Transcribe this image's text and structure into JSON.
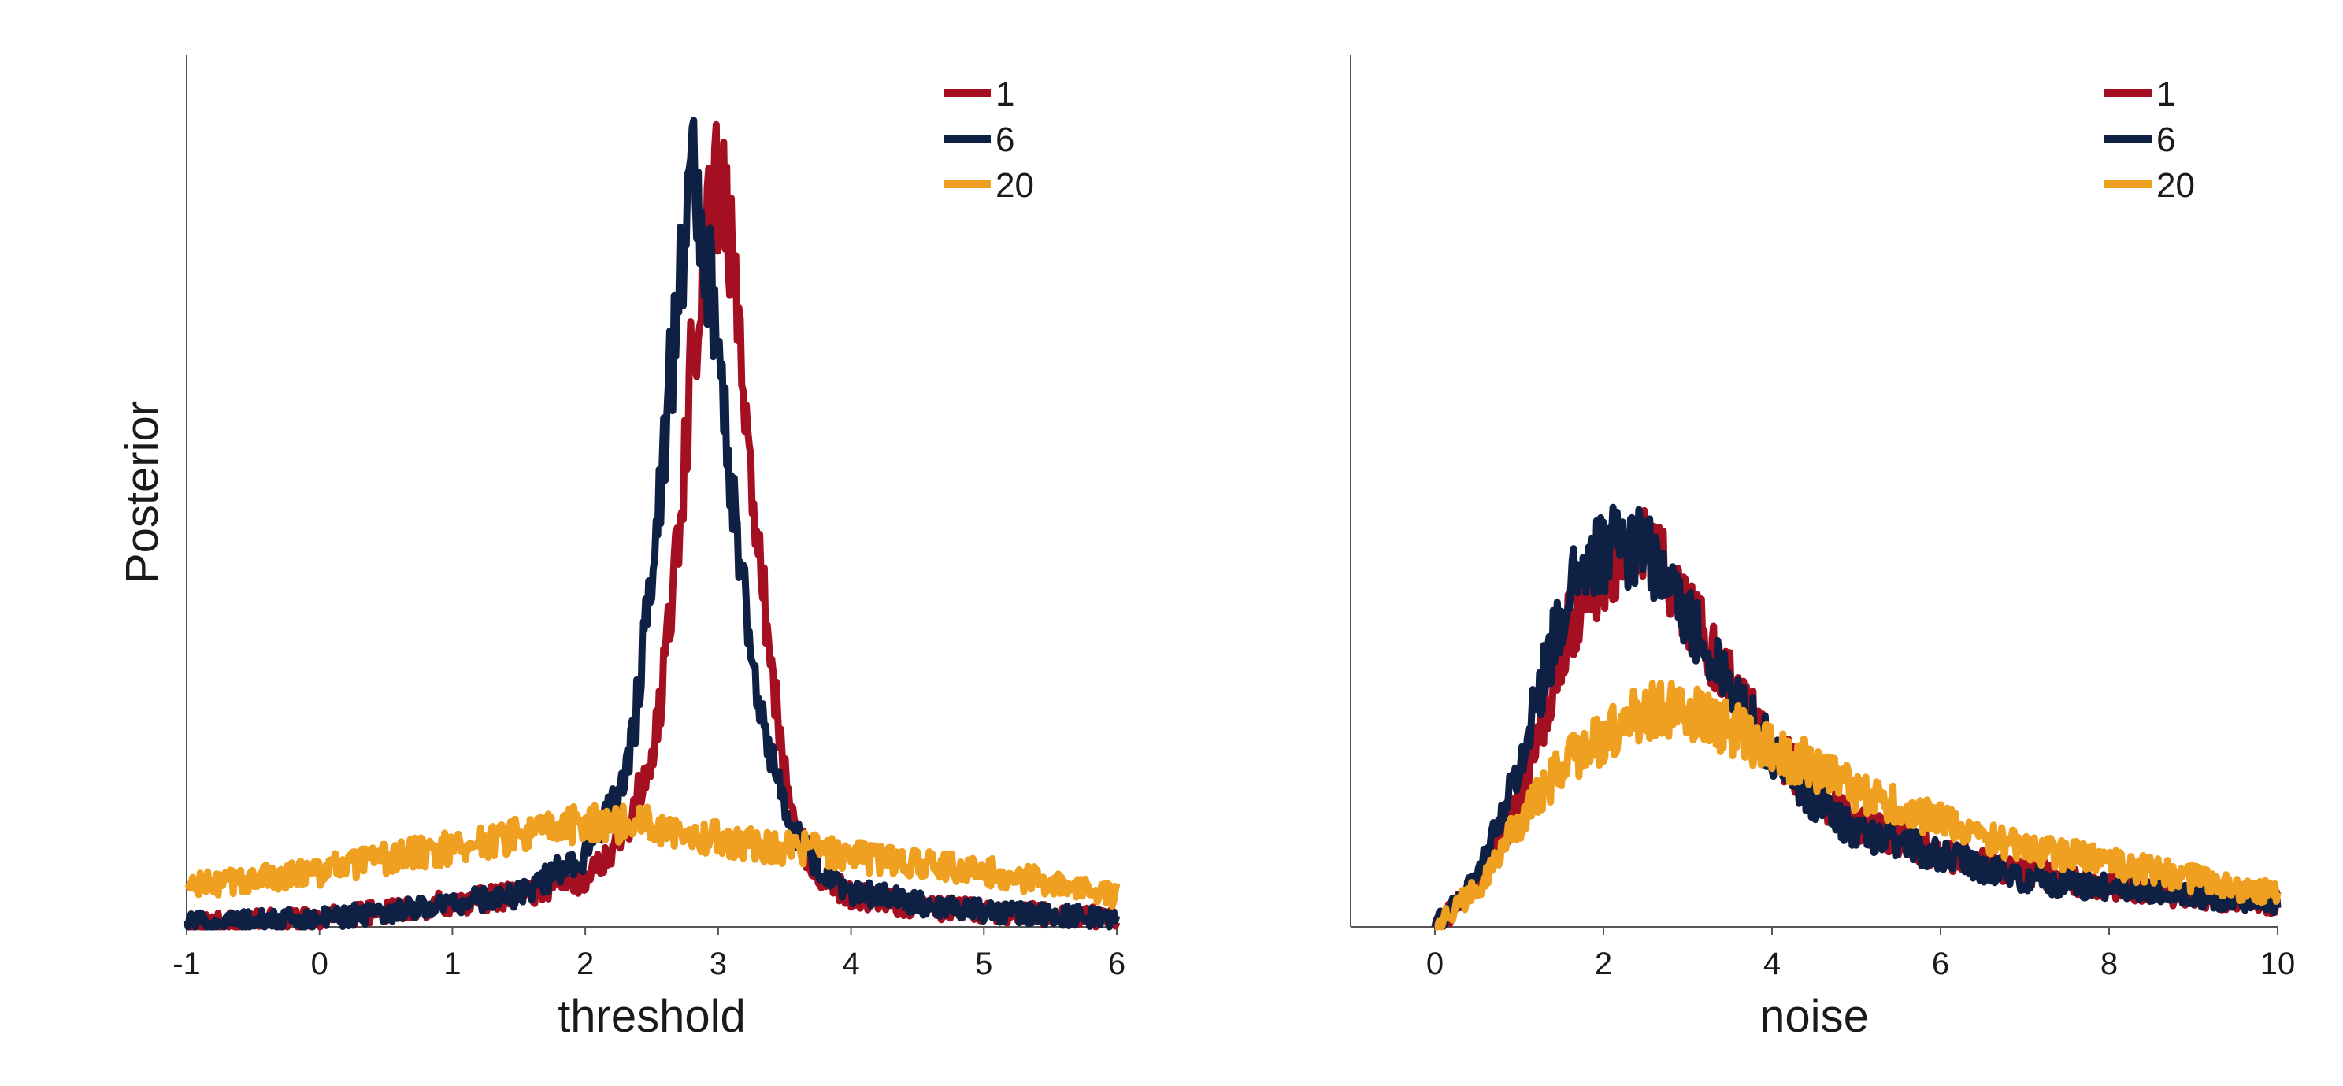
{
  "ylabel": "Posterior",
  "colors": {
    "s1": "#a50f22",
    "s6": "#0e2044",
    "s20": "#f0a020"
  },
  "chart_data": [
    {
      "type": "line",
      "xlabel": "threshold",
      "ylabel": "Posterior",
      "xlim": [
        -1,
        6
      ],
      "ylim": [
        0,
        1
      ],
      "x_ticks": [
        "-1",
        "0",
        "1",
        "2",
        "3",
        "4",
        "5",
        "6"
      ],
      "legend_position": "top-right",
      "legend": [
        "1",
        "6",
        "20"
      ],
      "series": [
        {
          "name": "1",
          "color": "#a50f22",
          "x": [
            -1,
            0,
            1,
            1.5,
            2,
            2.3,
            2.5,
            2.6,
            2.7,
            2.8,
            2.9,
            3.0,
            3.1,
            3.2,
            3.3,
            3.4,
            3.5,
            3.6,
            3.8,
            4,
            4.5,
            5,
            6
          ],
          "y": [
            0.005,
            0.01,
            0.03,
            0.04,
            0.06,
            0.12,
            0.21,
            0.33,
            0.5,
            0.7,
            0.88,
            0.94,
            0.84,
            0.68,
            0.5,
            0.33,
            0.19,
            0.11,
            0.06,
            0.04,
            0.025,
            0.02,
            0.01
          ]
        },
        {
          "name": "6",
          "color": "#0e2044",
          "x": [
            -1,
            0,
            1,
            1.5,
            2,
            2.3,
            2.4,
            2.5,
            2.6,
            2.7,
            2.8,
            2.9,
            3.0,
            3.1,
            3.2,
            3.3,
            3.4,
            3.5,
            3.6,
            3.8,
            4,
            4.5,
            5,
            6
          ],
          "y": [
            0.005,
            0.01,
            0.03,
            0.04,
            0.09,
            0.18,
            0.29,
            0.46,
            0.62,
            0.79,
            0.95,
            0.86,
            0.71,
            0.56,
            0.42,
            0.3,
            0.21,
            0.15,
            0.11,
            0.06,
            0.045,
            0.03,
            0.02,
            0.01
          ]
        },
        {
          "name": "20",
          "color": "#f0a020",
          "x": [
            -1,
            0,
            1,
            2,
            2.5,
            3,
            3.5,
            4,
            5,
            6
          ],
          "y": [
            0.05,
            0.07,
            0.1,
            0.13,
            0.13,
            0.11,
            0.1,
            0.09,
            0.07,
            0.04
          ]
        }
      ]
    },
    {
      "type": "line",
      "xlabel": "noise",
      "ylabel": "",
      "xlim": [
        -1,
        10
      ],
      "ylim": [
        0,
        1
      ],
      "x_ticks": [
        "0",
        "2",
        "4",
        "6",
        "8",
        "10"
      ],
      "legend_position": "top-right",
      "legend": [
        "1",
        "6",
        "20"
      ],
      "series": [
        {
          "name": "1",
          "color": "#a50f22",
          "x": [
            0,
            0.5,
            1,
            1.3,
            1.6,
            2,
            2.4,
            2.8,
            3.2,
            3.6,
            4,
            4.5,
            5,
            6,
            7,
            8,
            9,
            10
          ],
          "y": [
            0.0,
            0.05,
            0.16,
            0.27,
            0.38,
            0.45,
            0.48,
            0.44,
            0.36,
            0.29,
            0.23,
            0.17,
            0.13,
            0.09,
            0.07,
            0.05,
            0.04,
            0.03
          ]
        },
        {
          "name": "6",
          "color": "#0e2044",
          "x": [
            0,
            0.5,
            1,
            1.3,
            1.6,
            2,
            2.4,
            2.8,
            3.2,
            3.6,
            4,
            4.5,
            5,
            6,
            7,
            8,
            9,
            10
          ],
          "y": [
            0.0,
            0.06,
            0.2,
            0.32,
            0.42,
            0.47,
            0.48,
            0.43,
            0.35,
            0.28,
            0.22,
            0.16,
            0.12,
            0.09,
            0.06,
            0.05,
            0.04,
            0.03
          ]
        },
        {
          "name": "20",
          "color": "#f0a020",
          "x": [
            0,
            0.5,
            1,
            1.5,
            2,
            2.5,
            3,
            3.5,
            4,
            4.5,
            5,
            6,
            7,
            8,
            9,
            10
          ],
          "y": [
            0.0,
            0.05,
            0.13,
            0.2,
            0.24,
            0.27,
            0.27,
            0.25,
            0.22,
            0.2,
            0.17,
            0.13,
            0.1,
            0.08,
            0.06,
            0.04
          ]
        }
      ]
    }
  ]
}
